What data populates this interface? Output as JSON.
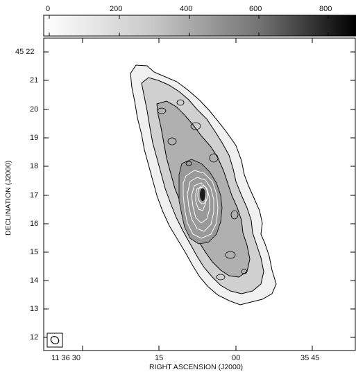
{
  "colorbar": {
    "tick_labels": [
      "0",
      "200",
      "400",
      "600",
      "800"
    ],
    "gradient_start": "#ffffff",
    "gradient_end": "#000000"
  },
  "axes": {
    "xlabel": "RIGHT ASCENSION (J2000)",
    "ylabel": "DECLINATION (J2000)",
    "x_tick_labels": [
      "11 36 30",
      "15",
      "00",
      "35 45"
    ],
    "y_tick_labels": [
      "45 22",
      "21",
      "20",
      "19",
      "18",
      "17",
      "16",
      "15",
      "14",
      "13",
      "12"
    ]
  },
  "image": {
    "contour_color_outer": "#000000",
    "contour_color_inner": "#ffffff",
    "galaxy_gray_levels": [
      "#f0f0f0",
      "#d0d0d0",
      "#b0b0b0",
      "#999999",
      "#8a8a8a"
    ]
  }
}
